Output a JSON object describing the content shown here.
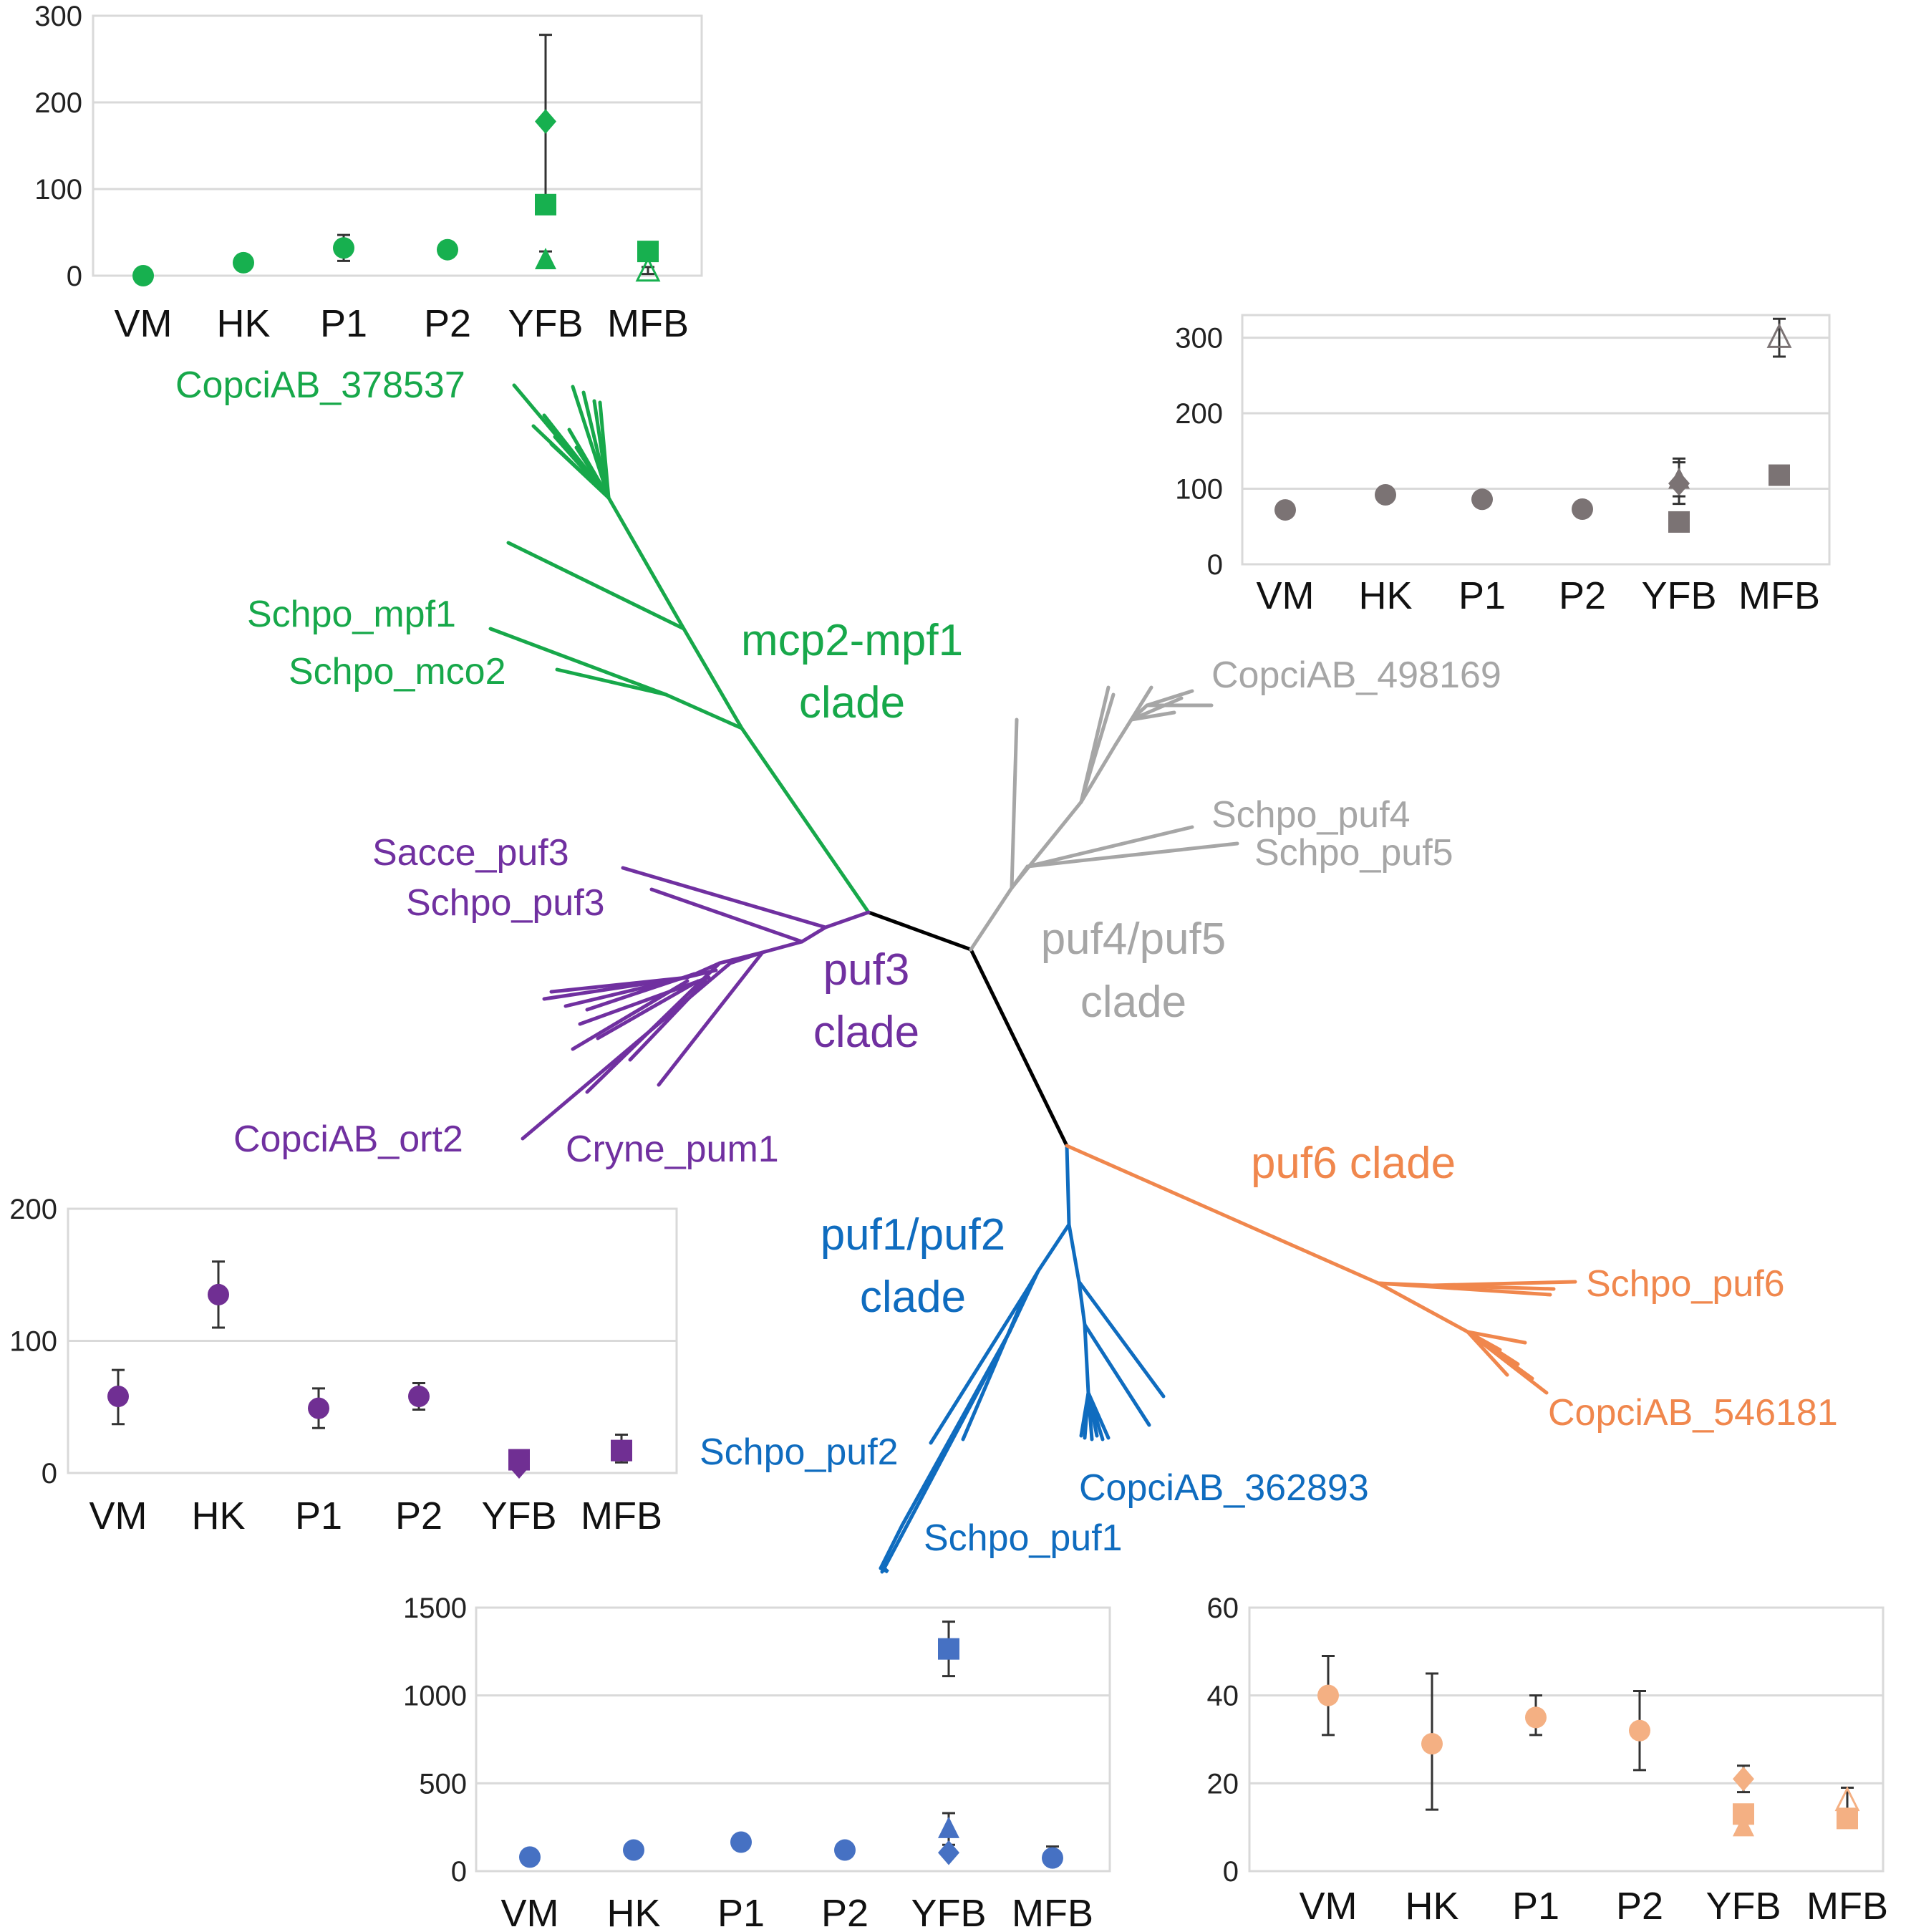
{
  "chart_data": [
    {
      "id": "green",
      "type": "scatter",
      "color": "#17b04f",
      "categories": [
        "VM",
        "HK",
        "P1",
        "P2",
        "YFB",
        "MFB"
      ],
      "ylim": [
        0,
        300
      ],
      "yticks": [
        0,
        100,
        200,
        300
      ],
      "series": [
        {
          "marker": "circle",
          "points": [
            {
              "x": "VM",
              "y": 0
            },
            {
              "x": "HK",
              "y": 15
            },
            {
              "x": "P1",
              "y": 32,
              "err": [
                17,
                47
              ]
            },
            {
              "x": "P2",
              "y": 30
            }
          ]
        },
        {
          "marker": "diamond",
          "points": [
            {
              "x": "YFB",
              "y": 178,
              "err": [
                80,
                278
              ]
            }
          ]
        },
        {
          "marker": "square",
          "points": [
            {
              "x": "YFB",
              "y": 82
            },
            {
              "x": "MFB",
              "y": 28
            }
          ]
        },
        {
          "marker": "triangle",
          "points": [
            {
              "x": "YFB",
              "y": 18,
              "err": [
                10,
                28
              ]
            }
          ]
        },
        {
          "marker": "triangle-open",
          "points": [
            {
              "x": "MFB",
              "y": 5,
              "err": [
                2,
                10
              ]
            }
          ]
        }
      ]
    },
    {
      "id": "gray",
      "type": "scatter",
      "color": "#7b7374",
      "categories": [
        "VM",
        "HK",
        "P1",
        "P2",
        "YFB",
        "MFB"
      ],
      "ylim": [
        0,
        330
      ],
      "yticks": [
        0,
        100,
        200,
        300
      ],
      "series": [
        {
          "marker": "circle",
          "points": [
            {
              "x": "VM",
              "y": 72
            },
            {
              "x": "HK",
              "y": 92
            },
            {
              "x": "P1",
              "y": 86
            },
            {
              "x": "P2",
              "y": 73
            }
          ]
        },
        {
          "marker": "diamond",
          "points": [
            {
              "x": "YFB",
              "y": 107,
              "err": [
                80,
                140
              ]
            }
          ]
        },
        {
          "marker": "square",
          "points": [
            {
              "x": "YFB",
              "y": 56
            },
            {
              "x": "MFB",
              "y": 118
            }
          ]
        },
        {
          "marker": "triangle",
          "points": [
            {
              "x": "YFB",
              "y": 112,
              "err": [
                90,
                135
              ]
            }
          ]
        },
        {
          "marker": "triangle-open",
          "points": [
            {
              "x": "MFB",
              "y": 300,
              "err": [
                275,
                325
              ]
            }
          ]
        }
      ]
    },
    {
      "id": "purple",
      "type": "scatter",
      "color": "#702f93",
      "categories": [
        "VM",
        "HK",
        "P1",
        "P2",
        "YFB",
        "MFB"
      ],
      "ylim": [
        0,
        200
      ],
      "yticks": [
        0,
        100,
        200
      ],
      "series": [
        {
          "marker": "circle",
          "points": [
            {
              "x": "VM",
              "y": 58,
              "err": [
                37,
                78
              ]
            },
            {
              "x": "HK",
              "y": 135,
              "err": [
                110,
                160
              ]
            },
            {
              "x": "P1",
              "y": 49,
              "err": [
                34,
                64
              ]
            },
            {
              "x": "P2",
              "y": 58,
              "err": [
                48,
                68
              ]
            }
          ]
        },
        {
          "marker": "diamond",
          "points": [
            {
              "x": "YFB",
              "y": 5
            }
          ]
        },
        {
          "marker": "square",
          "points": [
            {
              "x": "YFB",
              "y": 10
            },
            {
              "x": "MFB",
              "y": 17,
              "err": [
                8,
                29
              ]
            }
          ]
        }
      ]
    },
    {
      "id": "blue",
      "type": "scatter",
      "color": "#4671c3",
      "categories": [
        "VM",
        "HK",
        "P1",
        "P2",
        "YFB",
        "MFB"
      ],
      "ylim": [
        0,
        1500
      ],
      "yticks": [
        0,
        500,
        1000,
        1500
      ],
      "series": [
        {
          "marker": "circle",
          "points": [
            {
              "x": "VM",
              "y": 80
            },
            {
              "x": "HK",
              "y": 120
            },
            {
              "x": "P1",
              "y": 165
            },
            {
              "x": "P2",
              "y": 120
            },
            {
              "x": "MFB",
              "y": 75,
              "err": [
                40,
                140
              ]
            }
          ]
        },
        {
          "marker": "square",
          "points": [
            {
              "x": "YFB",
              "y": 1265,
              "err": [
                1110,
                1420
              ]
            }
          ]
        },
        {
          "marker": "triangle",
          "points": [
            {
              "x": "YFB",
              "y": 240,
              "err": [
                150,
                330
              ]
            }
          ]
        },
        {
          "marker": "diamond",
          "points": [
            {
              "x": "YFB",
              "y": 105
            }
          ]
        }
      ]
    },
    {
      "id": "orange",
      "type": "scatter",
      "color": "#f4b083",
      "categories": [
        "VM",
        "HK",
        "P1",
        "P2",
        "YFB",
        "MFB"
      ],
      "ylim": [
        0,
        60
      ],
      "yticks": [
        0,
        20,
        40,
        60
      ],
      "series": [
        {
          "marker": "circle",
          "points": [
            {
              "x": "VM",
              "y": 40,
              "err": [
                31,
                49
              ]
            },
            {
              "x": "HK",
              "y": 29,
              "err": [
                14,
                45
              ]
            },
            {
              "x": "P1",
              "y": 35,
              "err": [
                31,
                40
              ]
            },
            {
              "x": "P2",
              "y": 32,
              "err": [
                23,
                41
              ]
            }
          ]
        },
        {
          "marker": "diamond",
          "points": [
            {
              "x": "YFB",
              "y": 21,
              "err": [
                18,
                24
              ]
            }
          ]
        },
        {
          "marker": "square",
          "points": [
            {
              "x": "YFB",
              "y": 13
            },
            {
              "x": "MFB",
              "y": 12
            }
          ]
        },
        {
          "marker": "triangle",
          "points": [
            {
              "x": "YFB",
              "y": 10
            }
          ]
        },
        {
          "marker": "triangle-open",
          "points": [
            {
              "x": "MFB",
              "y": 16,
              "err": [
                13,
                19
              ]
            }
          ]
        }
      ]
    }
  ],
  "tree": {
    "clades": [
      {
        "id": "green",
        "color": "#17a84a",
        "label_line1": "mcp2-mpf1",
        "label_line2": "clade"
      },
      {
        "id": "gray",
        "color": "#a6a6a6",
        "label_line1": "puf4/puf5",
        "label_line2": "clade"
      },
      {
        "id": "purple",
        "color": "#7030a0",
        "label_line1": "puf3",
        "label_line2": "clade"
      },
      {
        "id": "blue",
        "color": "#0f6cbf",
        "label_line1": "puf1/puf2",
        "label_line2": "clade"
      },
      {
        "id": "orange",
        "color": "#f0874d",
        "label_line1": "puf6 clade",
        "label_line2": ""
      }
    ],
    "leaves": {
      "green_top": "CopciAB_378537",
      "green_mpf1": "Schpo_mpf1",
      "green_mco2": "Schpo_mco2",
      "gray_top": "CopciAB_498169",
      "gray_puf4": "Schpo_puf4",
      "gray_puf5": "Schpo_puf5",
      "purple_sacce": "Sacce_puf3",
      "purple_schpo": "Schpo_puf3",
      "purple_copci": "CopciAB_ort2",
      "purple_cryne": "Cryne_pum1",
      "orange_puf6": "Schpo_puf6",
      "orange_copci": "CopciAB_546181",
      "blue_puf2": "Schpo_puf2",
      "blue_copci": "CopciAB_362893",
      "blue_puf1": "Schpo_puf1"
    }
  }
}
